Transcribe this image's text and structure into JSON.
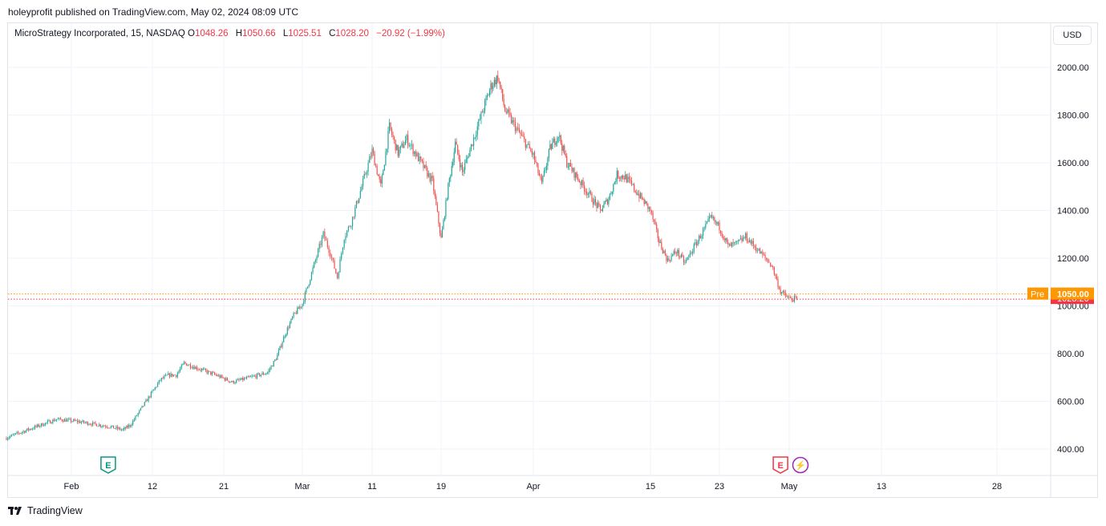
{
  "header": {
    "publisher_line": "holeyprofit published on TradingView.com, May 02, 2024 08:09 UTC"
  },
  "legend": {
    "symbol": "MicroStrategy Incorporated, 15, NASDAQ",
    "o_label": "O",
    "o_value": "1048.26",
    "h_label": "H",
    "h_value": "1050.66",
    "l_label": "L",
    "l_value": "1025.51",
    "c_label": "C",
    "c_value": "1028.20",
    "change": "−20.92 (−1.99%)"
  },
  "currency_button": "USD",
  "footer": {
    "brand": "TradingView"
  },
  "colors": {
    "up": "#26a69a",
    "down": "#ef5350",
    "grid": "#f0f3fa",
    "pre_badge": "#ff9800",
    "price_badge": "#f23645",
    "dividend": "#9c27b0"
  },
  "chart_data": {
    "type": "candlestick",
    "interval": "15",
    "y_ticks": [
      "2000.00",
      "1800.00",
      "1600.00",
      "1400.00",
      "1200.00",
      "1000.00",
      "800.00",
      "600.00",
      "400.00"
    ],
    "ylim": [
      333,
      2100
    ],
    "x_ticks": [
      {
        "label": "Feb",
        "date": "2024-02-01"
      },
      {
        "label": "12",
        "date": "2024-02-12"
      },
      {
        "label": "21",
        "date": "2024-02-21"
      },
      {
        "label": "Mar",
        "date": "2024-03-01"
      },
      {
        "label": "11",
        "date": "2024-03-11"
      },
      {
        "label": "19",
        "date": "2024-03-19"
      },
      {
        "label": "Apr",
        "date": "2024-04-01"
      },
      {
        "label": "15",
        "date": "2024-04-15"
      },
      {
        "label": "23",
        "date": "2024-04-23"
      },
      {
        "label": "May",
        "date": "2024-05-01"
      },
      {
        "label": "13",
        "date": "2024-05-13"
      },
      {
        "label": "28",
        "date": "2024-05-28"
      }
    ],
    "path": [
      [
        "2024-01-23",
        445
      ],
      [
        "2024-01-26",
        480
      ],
      [
        "2024-01-30",
        525
      ],
      [
        "2024-02-02",
        515
      ],
      [
        "2024-02-06",
        495
      ],
      [
        "2024-02-08",
        480
      ],
      [
        "2024-02-09",
        500
      ],
      [
        "2024-02-12",
        640
      ],
      [
        "2024-02-13",
        690
      ],
      [
        "2024-02-14",
        710
      ],
      [
        "2024-02-15",
        710
      ],
      [
        "2024-02-16",
        760
      ],
      [
        "2024-02-20",
        710
      ],
      [
        "2024-02-22",
        680
      ],
      [
        "2024-02-26",
        720
      ],
      [
        "2024-02-27",
        780
      ],
      [
        "2024-02-28",
        880
      ],
      [
        "2024-02-29",
        960
      ],
      [
        "2024-03-01",
        1010
      ],
      [
        "2024-03-04",
        1300
      ],
      [
        "2024-03-05",
        1220
      ],
      [
        "2024-03-06",
        1120
      ],
      [
        "2024-03-07",
        1290
      ],
      [
        "2024-03-08",
        1350
      ],
      [
        "2024-03-11",
        1650
      ],
      [
        "2024-03-12",
        1500
      ],
      [
        "2024-03-13",
        1750
      ],
      [
        "2024-03-14",
        1640
      ],
      [
        "2024-03-15",
        1700
      ],
      [
        "2024-03-18",
        1520
      ],
      [
        "2024-03-19",
        1280
      ],
      [
        "2024-03-20",
        1500
      ],
      [
        "2024-03-21",
        1680
      ],
      [
        "2024-03-22",
        1560
      ],
      [
        "2024-03-25",
        1830
      ],
      [
        "2024-03-26",
        1920
      ],
      [
        "2024-03-27",
        1960
      ],
      [
        "2024-03-28",
        1820
      ],
      [
        "2024-04-01",
        1630
      ],
      [
        "2024-04-02",
        1510
      ],
      [
        "2024-04-03",
        1660
      ],
      [
        "2024-04-04",
        1720
      ],
      [
        "2024-04-05",
        1600
      ],
      [
        "2024-04-08",
        1450
      ],
      [
        "2024-04-09",
        1400
      ],
      [
        "2024-04-10",
        1450
      ],
      [
        "2024-04-11",
        1550
      ],
      [
        "2024-04-12",
        1540
      ],
      [
        "2024-04-15",
        1400
      ],
      [
        "2024-04-16",
        1270
      ],
      [
        "2024-04-17",
        1190
      ],
      [
        "2024-04-18",
        1230
      ],
      [
        "2024-04-19",
        1180
      ],
      [
        "2024-04-22",
        1370
      ],
      [
        "2024-04-23",
        1330
      ],
      [
        "2024-04-24",
        1250
      ],
      [
        "2024-04-25",
        1260
      ],
      [
        "2024-04-26",
        1290
      ],
      [
        "2024-04-29",
        1170
      ],
      [
        "2024-04-30",
        1060
      ],
      [
        "2024-05-01",
        1030
      ],
      [
        "2024-05-02",
        1028
      ]
    ],
    "price_line": 1050.0,
    "current_price": 1028.2,
    "pre_label": "Pre",
    "pre_price": "1050.00",
    "current_price_label": "1028.20",
    "events": [
      {
        "type": "earnings",
        "date": "2024-02-06",
        "label": "E",
        "color": "#089981"
      },
      {
        "type": "earnings",
        "date": "2024-04-30",
        "label": "E",
        "color": "#f23645"
      },
      {
        "type": "dividend",
        "date": "2024-05-01",
        "label": "⚡",
        "color": "#9c27b0"
      }
    ]
  }
}
